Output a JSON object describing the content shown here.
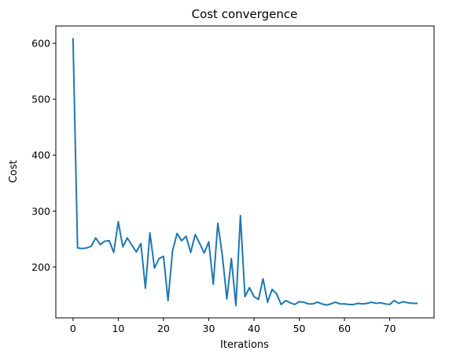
{
  "chart_data": {
    "type": "line",
    "title": "Cost convergence",
    "xlabel": "Iterations",
    "ylabel": "Cost",
    "xlim": [
      -3.8,
      79.8
    ],
    "ylim": [
      109,
      631
    ],
    "xticks": [
      0,
      10,
      20,
      30,
      40,
      50,
      60,
      70
    ],
    "yticks": [
      200,
      300,
      400,
      500,
      600
    ],
    "grid": false,
    "line_color": "#1f77b4",
    "series": [
      {
        "x": [
          0,
          1,
          2,
          3,
          4,
          5,
          6,
          7,
          8,
          9,
          10,
          11,
          12,
          13,
          14,
          15,
          16,
          17,
          18,
          19,
          20,
          21,
          22,
          23,
          24,
          25,
          26,
          27,
          28,
          29,
          30,
          31,
          32,
          33,
          34,
          35,
          36,
          37,
          38,
          39,
          40,
          41,
          42,
          43,
          44,
          45,
          46,
          47,
          48,
          49,
          50,
          51,
          52,
          53,
          54,
          55,
          56,
          57,
          58,
          59,
          60,
          61,
          62,
          63,
          64,
          65,
          66,
          67,
          68,
          69,
          70,
          71,
          72,
          73,
          74,
          75,
          76
        ],
        "values": [
          608,
          234,
          233,
          234,
          237,
          252,
          240,
          246,
          247,
          226,
          281,
          236,
          252,
          239,
          227,
          242,
          162,
          261,
          198,
          215,
          219,
          140,
          229,
          260,
          247,
          255,
          226,
          258,
          242,
          225,
          245,
          169,
          278,
          221,
          143,
          215,
          131,
          292,
          147,
          163,
          147,
          142,
          179,
          137,
          160,
          152,
          133,
          140,
          136,
          133,
          138,
          137,
          134,
          134,
          137,
          134,
          132,
          134,
          137,
          134,
          134,
          133,
          133,
          135,
          134,
          135,
          137,
          135,
          136,
          134,
          133,
          140,
          135,
          138,
          136,
          135,
          135
        ]
      }
    ]
  }
}
